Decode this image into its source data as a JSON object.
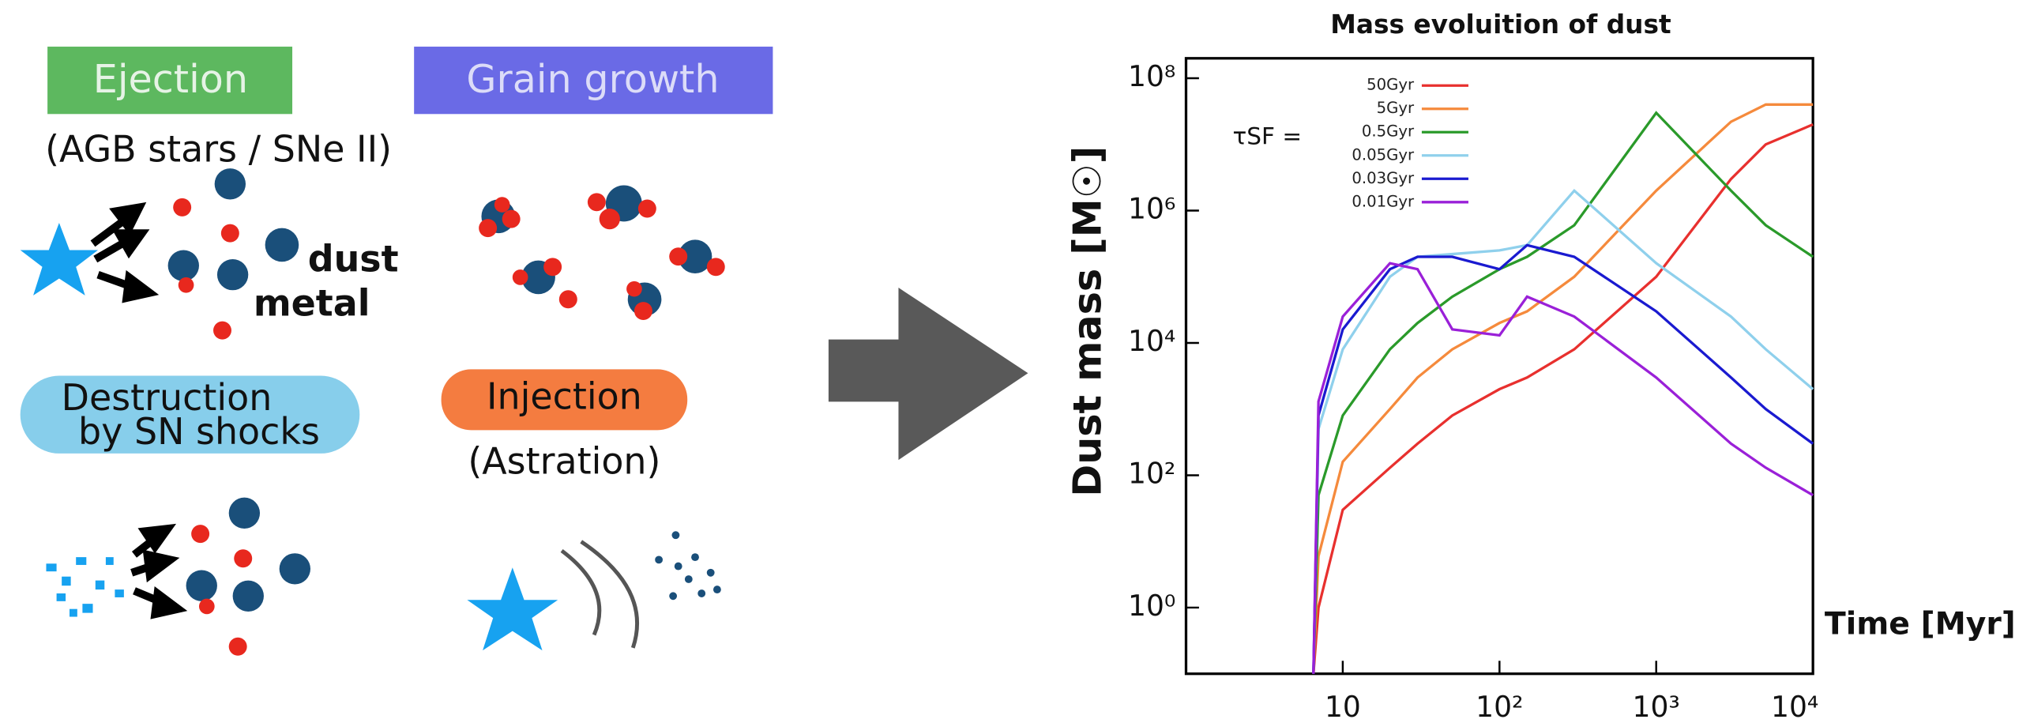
{
  "diagram": {
    "ejection": {
      "label": "Ejection",
      "source": "(AGB stars / SNe II)"
    },
    "dust_label": "dust",
    "metal_label": "metal",
    "grain_growth": "Grain growth",
    "destruction": [
      "Destruction",
      "by SN shocks"
    ],
    "injection": {
      "label": "Injection",
      "note": "(Astration)"
    }
  },
  "chart_data": {
    "type": "line",
    "title": "Mass evoluition of dust",
    "x_label": "Time [Myr]",
    "y_label": "Dust mass [M☉]",
    "legend_title": "τSF =",
    "xscale": "log",
    "yscale": "log",
    "x": [
      6.5,
      7,
      10,
      20,
      30,
      50,
      100,
      150,
      300,
      1000,
      3000,
      5000,
      10000
    ],
    "series": [
      {
        "name": "50Gyr",
        "color": "#e8302e",
        "values": [
          0.1,
          1,
          30,
          130,
          300,
          800,
          2000,
          3000,
          8000,
          100000,
          3000000,
          10000000,
          20000000
        ]
      },
      {
        "name": "5Gyr",
        "color": "#f58a3c",
        "values": [
          0.1,
          6,
          160,
          1000,
          3000,
          8000,
          20000,
          30000,
          100000,
          2000000,
          22000000,
          40000000,
          40000000
        ]
      },
      {
        "name": "0.5Gyr",
        "color": "#2a9a2a",
        "values": [
          0.1,
          50,
          800,
          8000,
          20000,
          50000,
          130000,
          200000,
          600000,
          30000000,
          2000000,
          600000,
          200000
        ]
      },
      {
        "name": "0.05Gyr",
        "color": "#8fd0ec",
        "values": [
          0.1,
          500,
          8000,
          100000,
          200000,
          220000,
          250000,
          300000,
          2000000,
          160000,
          25000,
          8000,
          2000
        ]
      },
      {
        "name": "0.03Gyr",
        "color": "#1a1ad0",
        "values": [
          0.1,
          800,
          16000,
          130000,
          200000,
          200000,
          130000,
          300000,
          200000,
          30000,
          3000,
          1000,
          300
        ]
      },
      {
        "name": "0.01Gyr",
        "color": "#9a20d8",
        "values": [
          0.1,
          1300,
          25000,
          160000,
          130000,
          16000,
          13000,
          50000,
          25000,
          3000,
          300,
          130,
          50
        ]
      }
    ],
    "xlim": [
      1,
      10000
    ],
    "xticks": [
      10,
      {
        "value": 100,
        "label": "10²"
      },
      {
        "value": 1000,
        "label": "10³"
      },
      {
        "value": 10000,
        "label": "10⁴"
      }
    ],
    "ylim": [
      0.1,
      200000000
    ],
    "yticks": [
      {
        "value": 1,
        "label": "10⁰"
      },
      {
        "value": 100,
        "label": "10²"
      },
      {
        "value": 10000,
        "label": "10⁴"
      },
      {
        "value": 1000000,
        "label": "10⁶"
      },
      {
        "value": 100000000,
        "label": "10⁸"
      }
    ]
  }
}
